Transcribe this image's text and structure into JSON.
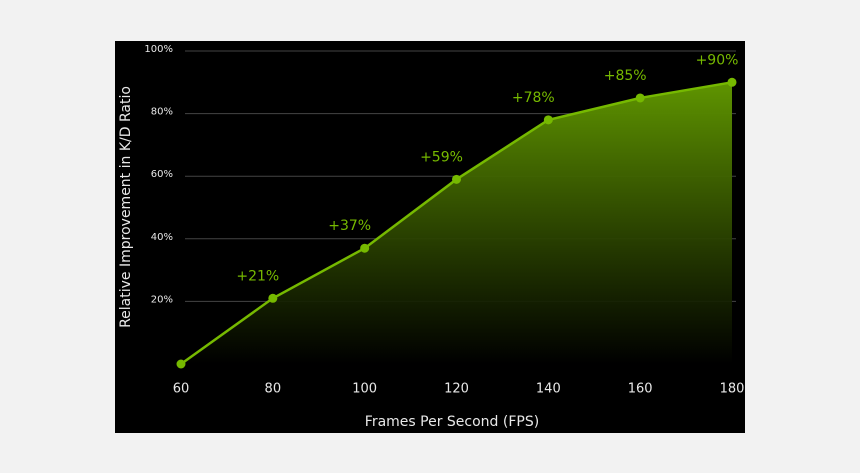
{
  "chart_data": {
    "type": "area",
    "y_label": "Relative Improvement in K/D Ratio",
    "x_label": "Frames Per Second (FPS)",
    "x": [
      60,
      80,
      100,
      120,
      140,
      160,
      180
    ],
    "series": [
      {
        "color": "#76b900",
        "values": [
          0,
          21,
          37,
          59,
          78,
          85,
          90
        ],
        "value_labels": [
          null,
          "+21%",
          "+37%",
          "+59%",
          "+78%",
          "+85%",
          "+90%"
        ]
      }
    ],
    "xlim": [
      60,
      180
    ],
    "xticks": [
      60,
      80,
      100,
      120,
      140,
      160,
      180
    ],
    "ylim": [
      0,
      100
    ],
    "yticks": [
      {
        "value": 20,
        "label": "20%"
      },
      {
        "value": 40,
        "label": "40%"
      },
      {
        "value": 60,
        "label": "60%"
      },
      {
        "value": 80,
        "label": "80%"
      },
      {
        "value": 100,
        "label": "100%"
      }
    ],
    "grid": true
  }
}
